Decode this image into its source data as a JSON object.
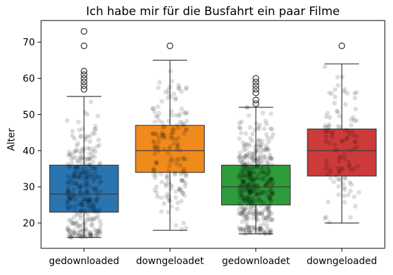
{
  "chart_data": {
    "type": "box",
    "title": "Ich habe mir für die Busfahrt ein paar Filme",
    "xlabel": "",
    "ylabel": "Alter",
    "ylim": [
      13,
      76
    ],
    "y_ticks": [
      20,
      30,
      40,
      50,
      60,
      70
    ],
    "categories": [
      "gedownloaded",
      "downgeloadet",
      "gedownloadet",
      "downgeloaded"
    ],
    "colors": [
      "#2a74b0",
      "#f08a1c",
      "#2e9c3a",
      "#cc3a3a"
    ],
    "boxes": [
      {
        "category": "gedownloaded",
        "q1": 23,
        "median": 28,
        "q3": 36,
        "whisker_low": 16,
        "whisker_high": 55,
        "outliers": [
          57,
          58,
          59,
          60,
          61,
          62,
          69,
          73
        ]
      },
      {
        "category": "downgeloadet",
        "q1": 34,
        "median": 40,
        "q3": 47,
        "whisker_low": 18,
        "whisker_high": 65,
        "outliers": [
          69
        ]
      },
      {
        "category": "gedownloadet",
        "q1": 25,
        "median": 30,
        "q3": 36,
        "whisker_low": 17,
        "whisker_high": 52,
        "outliers": [
          53,
          54,
          56,
          57,
          58,
          59,
          60
        ]
      },
      {
        "category": "downgeloaded",
        "q1": 33,
        "median": 40,
        "q3": 46,
        "whisker_low": 20,
        "whisker_high": 64,
        "outliers": [
          69
        ]
      }
    ],
    "overlay": "jittered semi-transparent grey strip points",
    "grid": false,
    "legend": "none"
  }
}
